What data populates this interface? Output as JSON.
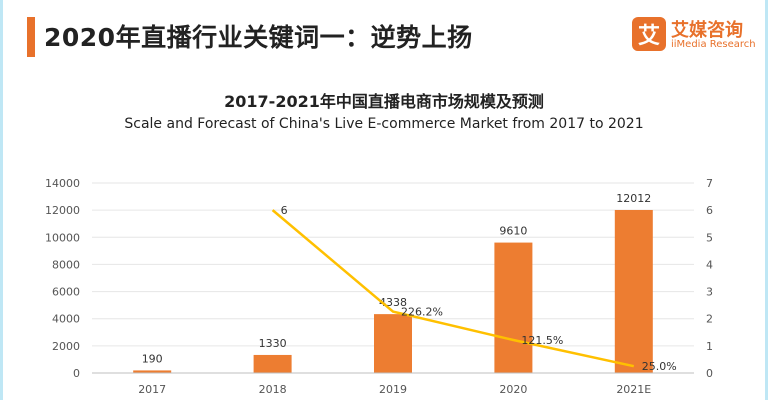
{
  "header": {
    "title": "2020年直播行业关键词一：逆势上扬",
    "logo_icon": "艾",
    "logo_cn": "艾媒咨询",
    "logo_en": "iiMedia Research"
  },
  "colors": {
    "accent": "#e8712b",
    "bar": "#ed7d31",
    "line": "#ffc000",
    "frame": "#bfe7f5"
  },
  "chart_data": {
    "type": "bar",
    "title": "2017-2021年中国直播电商市场规模及预测",
    "subtitle": "Scale and Forecast of China's Live E-commerce Market from 2017 to 2021",
    "categories": [
      "2017",
      "2018",
      "2019",
      "2020",
      "2021E"
    ],
    "series": [
      {
        "type": "bar",
        "axis": "left",
        "values": [
          190,
          1330,
          4338,
          9610,
          12012
        ],
        "labels": [
          "190",
          "1330",
          "4338",
          "9610",
          "12012"
        ]
      },
      {
        "type": "line",
        "axis": "right",
        "values": [
          null,
          6,
          2.262,
          1.215,
          0.25
        ],
        "labels": [
          "",
          "6",
          "226.2%",
          "121.5%",
          "25.0%"
        ]
      }
    ],
    "ylim": [
      0,
      14000
    ],
    "yticks": [
      "0",
      "2000",
      "4000",
      "6000",
      "8000",
      "10000",
      "12000",
      "14000"
    ],
    "y2lim": [
      0,
      7
    ],
    "y2ticks": [
      "0",
      "1",
      "2",
      "3",
      "4",
      "5",
      "6",
      "7"
    ],
    "grid": true,
    "legend": "none"
  }
}
